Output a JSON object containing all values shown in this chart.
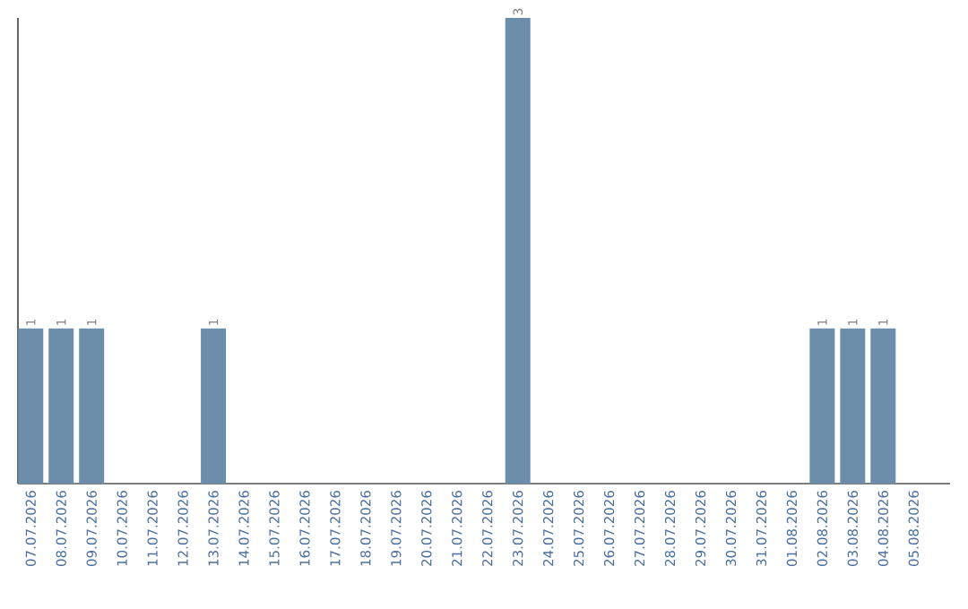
{
  "chart_data": {
    "type": "bar",
    "categories": [
      "07.07.2026",
      "08.07.2026",
      "09.07.2026",
      "10.07.2026",
      "11.07.2026",
      "12.07.2026",
      "13.07.2026",
      "14.07.2026",
      "15.07.2026",
      "16.07.2026",
      "17.07.2026",
      "18.07.2026",
      "19.07.2026",
      "20.07.2026",
      "21.07.2026",
      "22.07.2026",
      "23.07.2026",
      "24.07.2026",
      "25.07.2026",
      "26.07.2026",
      "27.07.2026",
      "28.07.2026",
      "29.07.2026",
      "30.07.2026",
      "31.07.2026",
      "01.08.2026",
      "02.08.2026",
      "03.08.2026",
      "04.08.2026",
      "05.08.2026"
    ],
    "values": [
      1,
      1,
      1,
      0,
      0,
      0,
      1,
      0,
      0,
      0,
      0,
      0,
      0,
      0,
      0,
      0,
      3,
      0,
      0,
      0,
      0,
      0,
      0,
      0,
      0,
      0,
      1,
      1,
      1,
      0
    ],
    "value_labels": [
      "1",
      "1",
      "1",
      null,
      null,
      null,
      "1",
      null,
      null,
      null,
      null,
      null,
      null,
      null,
      null,
      null,
      "3",
      null,
      null,
      null,
      null,
      null,
      null,
      null,
      null,
      null,
      "1",
      "1",
      "1",
      null
    ],
    "color": "#6c8eab"
  }
}
